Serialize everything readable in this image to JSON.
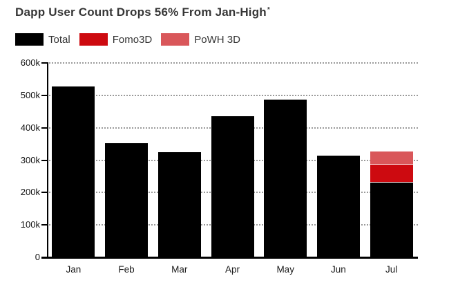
{
  "title": {
    "text": "Dapp User Count Drops 56% From Jan-High",
    "footnote_marker": "*"
  },
  "legend": {
    "items": [
      {
        "label": "Total",
        "color": "#000000"
      },
      {
        "label": "Fomo3D",
        "color": "#cd0a10"
      },
      {
        "label": "PoWH 3D",
        "color": "#d9575a"
      }
    ]
  },
  "chart_data": {
    "type": "bar",
    "stacked": true,
    "title": "Dapp User Count Drops 56% From Jan-High*",
    "unit": "users (thousands)",
    "categories": [
      "Jan",
      "Feb",
      "Mar",
      "Apr",
      "May",
      "Jun",
      "Jul"
    ],
    "series": [
      {
        "name": "Total",
        "color": "#000000",
        "values": [
          527,
          353,
          325,
          436,
          487,
          314,
          231
        ]
      },
      {
        "name": "Fomo3D",
        "color": "#cd0a10",
        "values": [
          0,
          0,
          0,
          0,
          0,
          0,
          55
        ]
      },
      {
        "name": "PoWH 3D",
        "color": "#d9575a",
        "values": [
          0,
          0,
          0,
          0,
          0,
          0,
          41
        ]
      }
    ],
    "xlabel": "",
    "ylabel": "",
    "ylim": [
      0,
      600
    ],
    "ytick_values": [
      0,
      100,
      200,
      300,
      400,
      500,
      600
    ],
    "ytick_labels": [
      "0",
      "100k",
      "200k",
      "300k",
      "400k",
      "500k",
      "600k"
    ],
    "grid": "horizontal-dotted",
    "gridline_color": "#9a9a9a",
    "legend_position": "top-left",
    "background": "#ffffff"
  }
}
